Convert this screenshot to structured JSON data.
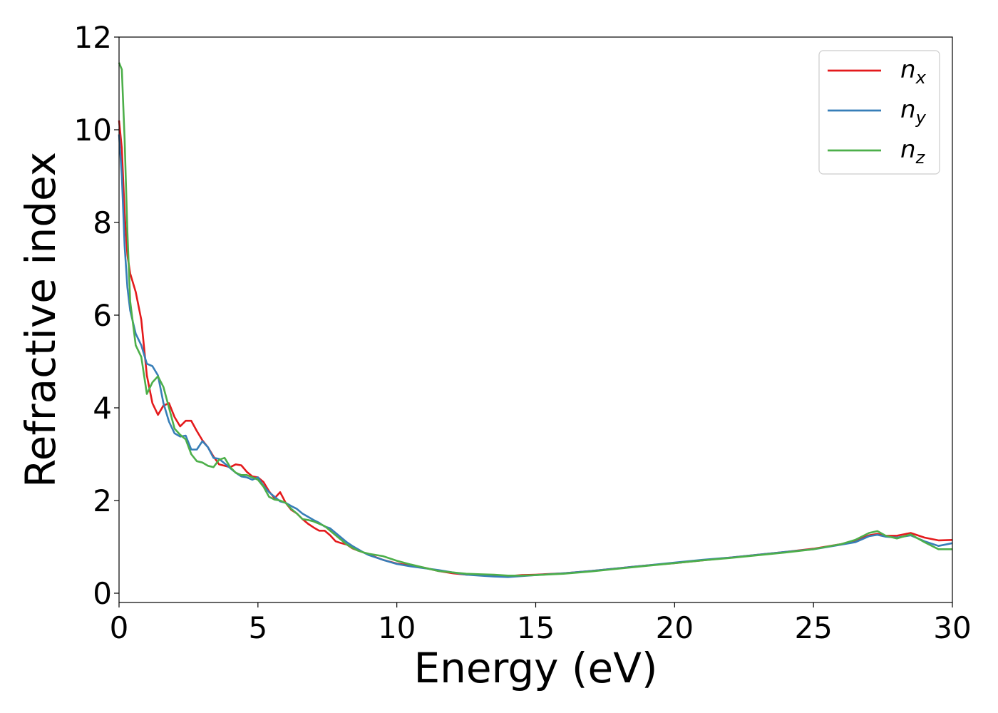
{
  "chart_data": {
    "type": "line",
    "xlabel": "Energy (eV)",
    "ylabel": "Refractive index",
    "xlim": [
      0,
      30
    ],
    "ylim": [
      -0.2,
      12
    ],
    "xticks": [
      0,
      5,
      10,
      15,
      20,
      25,
      30
    ],
    "yticks": [
      0,
      2,
      4,
      6,
      8,
      10,
      12
    ],
    "grid": false,
    "legend_position": "top-right",
    "series": [
      {
        "name": "n_x",
        "legend_base": "n",
        "legend_sub": "x",
        "color": "#e41a1c",
        "x": [
          0,
          0.1,
          0.2,
          0.3,
          0.4,
          0.6,
          0.8,
          1.0,
          1.2,
          1.4,
          1.6,
          1.8,
          2.0,
          2.2,
          2.4,
          2.6,
          2.8,
          3.0,
          3.2,
          3.4,
          3.6,
          3.8,
          4.0,
          4.2,
          4.4,
          4.6,
          4.8,
          5.0,
          5.2,
          5.4,
          5.6,
          5.8,
          6.0,
          6.2,
          6.4,
          6.6,
          6.8,
          7.0,
          7.2,
          7.4,
          7.6,
          7.8,
          8.0,
          8.2,
          8.4,
          8.6,
          8.8,
          9.0,
          9.5,
          10.0,
          10.5,
          11.0,
          11.5,
          12.0,
          12.5,
          13.0,
          13.5,
          14.0,
          14.5,
          15.0,
          16.0,
          17.0,
          18.0,
          19.0,
          20.0,
          21.0,
          22.0,
          23.0,
          24.0,
          25.0,
          26.0,
          26.5,
          27.0,
          27.3,
          27.6,
          28.0,
          28.5,
          29.0,
          29.5,
          30.0
        ],
        "y": [
          10.2,
          9.6,
          8.2,
          7.3,
          6.9,
          6.5,
          5.9,
          4.7,
          4.1,
          3.85,
          4.05,
          4.1,
          3.8,
          3.6,
          3.72,
          3.72,
          3.5,
          3.3,
          3.15,
          2.95,
          2.78,
          2.75,
          2.72,
          2.78,
          2.76,
          2.62,
          2.52,
          2.5,
          2.4,
          2.2,
          2.05,
          2.18,
          1.95,
          1.8,
          1.72,
          1.6,
          1.5,
          1.42,
          1.35,
          1.35,
          1.25,
          1.12,
          1.08,
          1.05,
          0.97,
          0.92,
          0.88,
          0.83,
          0.72,
          0.64,
          0.6,
          0.55,
          0.48,
          0.43,
          0.4,
          0.4,
          0.38,
          0.37,
          0.39,
          0.4,
          0.43,
          0.48,
          0.54,
          0.6,
          0.65,
          0.71,
          0.77,
          0.83,
          0.89,
          0.96,
          1.06,
          1.13,
          1.25,
          1.28,
          1.24,
          1.24,
          1.3,
          1.2,
          1.14,
          1.15
        ]
      },
      {
        "name": "n_y",
        "legend_base": "n",
        "legend_sub": "y",
        "color": "#377eb8",
        "x": [
          0,
          0.1,
          0.2,
          0.3,
          0.4,
          0.6,
          0.8,
          1.0,
          1.2,
          1.4,
          1.6,
          1.8,
          2.0,
          2.2,
          2.4,
          2.6,
          2.8,
          3.0,
          3.2,
          3.4,
          3.6,
          3.8,
          4.0,
          4.2,
          4.4,
          4.6,
          4.8,
          5.0,
          5.2,
          5.4,
          5.6,
          5.8,
          6.0,
          6.2,
          6.4,
          6.6,
          6.8,
          7.0,
          7.2,
          7.4,
          7.6,
          7.8,
          8.0,
          8.2,
          8.4,
          8.6,
          8.8,
          9.0,
          9.5,
          10.0,
          10.5,
          11.0,
          11.5,
          12.0,
          12.5,
          13.0,
          13.5,
          14.0,
          14.5,
          15.0,
          16.0,
          17.0,
          18.0,
          19.0,
          20.0,
          21.0,
          22.0,
          23.0,
          24.0,
          25.0,
          26.0,
          26.5,
          27.0,
          27.3,
          27.6,
          28.0,
          28.5,
          29.0,
          29.5,
          30.0
        ],
        "y": [
          9.9,
          9.0,
          7.5,
          6.6,
          6.1,
          5.6,
          5.35,
          4.95,
          4.9,
          4.7,
          4.1,
          3.7,
          3.45,
          3.38,
          3.4,
          3.1,
          3.1,
          3.28,
          3.15,
          2.92,
          2.9,
          2.8,
          2.7,
          2.6,
          2.52,
          2.5,
          2.45,
          2.5,
          2.32,
          2.18,
          2.08,
          1.98,
          1.95,
          1.88,
          1.82,
          1.72,
          1.65,
          1.58,
          1.52,
          1.44,
          1.4,
          1.3,
          1.2,
          1.1,
          1.02,
          0.95,
          0.88,
          0.82,
          0.72,
          0.63,
          0.58,
          0.54,
          0.5,
          0.45,
          0.4,
          0.38,
          0.36,
          0.35,
          0.37,
          0.39,
          0.43,
          0.48,
          0.54,
          0.6,
          0.66,
          0.72,
          0.77,
          0.83,
          0.89,
          0.95,
          1.05,
          1.1,
          1.23,
          1.26,
          1.22,
          1.2,
          1.25,
          1.12,
          1.02,
          1.08
        ]
      },
      {
        "name": "n_z",
        "legend_base": "n",
        "legend_sub": "z",
        "color": "#4daf4a",
        "x": [
          0,
          0.1,
          0.2,
          0.3,
          0.4,
          0.6,
          0.8,
          1.0,
          1.2,
          1.4,
          1.6,
          1.8,
          2.0,
          2.2,
          2.4,
          2.6,
          2.8,
          3.0,
          3.2,
          3.4,
          3.6,
          3.8,
          4.0,
          4.2,
          4.4,
          4.6,
          4.8,
          5.0,
          5.2,
          5.4,
          5.6,
          5.8,
          6.0,
          6.2,
          6.4,
          6.6,
          6.8,
          7.0,
          7.2,
          7.4,
          7.6,
          7.8,
          8.0,
          8.2,
          8.4,
          8.6,
          8.8,
          9.0,
          9.5,
          10.0,
          10.5,
          11.0,
          11.5,
          12.0,
          12.5,
          13.0,
          13.5,
          14.0,
          14.5,
          15.0,
          16.0,
          17.0,
          18.0,
          19.0,
          20.0,
          21.0,
          22.0,
          23.0,
          24.0,
          25.0,
          26.0,
          26.5,
          27.0,
          27.3,
          27.6,
          28.0,
          28.5,
          29.0,
          29.5,
          30.0
        ],
        "y": [
          11.45,
          11.3,
          9.8,
          7.8,
          6.3,
          5.35,
          5.1,
          4.3,
          4.55,
          4.68,
          4.45,
          4.0,
          3.55,
          3.42,
          3.32,
          3.0,
          2.85,
          2.82,
          2.75,
          2.72,
          2.88,
          2.92,
          2.72,
          2.6,
          2.55,
          2.55,
          2.5,
          2.45,
          2.3,
          2.08,
          2.02,
          2.0,
          1.95,
          1.82,
          1.72,
          1.6,
          1.58,
          1.55,
          1.5,
          1.45,
          1.35,
          1.25,
          1.15,
          1.05,
          0.98,
          0.92,
          0.88,
          0.85,
          0.8,
          0.7,
          0.62,
          0.55,
          0.48,
          0.45,
          0.42,
          0.41,
          0.4,
          0.38,
          0.38,
          0.39,
          0.42,
          0.47,
          0.53,
          0.59,
          0.65,
          0.71,
          0.76,
          0.82,
          0.88,
          0.95,
          1.06,
          1.15,
          1.3,
          1.34,
          1.24,
          1.18,
          1.27,
          1.1,
          0.95,
          0.95
        ]
      }
    ]
  }
}
